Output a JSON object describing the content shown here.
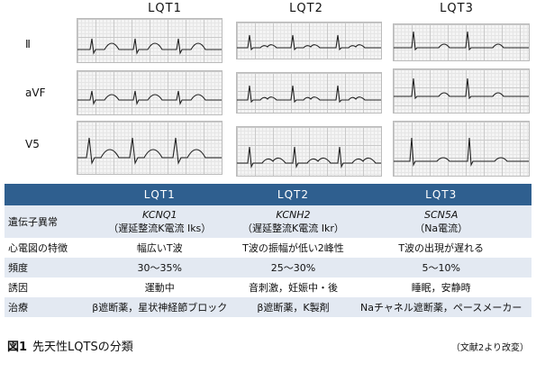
{
  "columns": [
    "LQT1",
    "LQT2",
    "LQT3"
  ],
  "leads": [
    "Ⅱ",
    "aVF",
    "V5"
  ],
  "table": {
    "header_blank": "",
    "rows": [
      {
        "label": "遺伝子異常",
        "cells": [
          {
            "line1": "KCNQ1",
            "line2": "（遅延整流K電流 Iks）"
          },
          {
            "line1": "KCNH2",
            "line2": "（遅延整流K電流 Ikr）"
          },
          {
            "line1": "SCN5A",
            "line2": "（Na電流）"
          }
        ]
      },
      {
        "label": "心電図の特徴",
        "cells": [
          "幅広いT波",
          "T波の振幅が低い2峰性",
          "T波の出現が遅れる"
        ]
      },
      {
        "label": "頻度",
        "cells": [
          "30〜35%",
          "25〜30%",
          "5〜10%"
        ]
      },
      {
        "label": "誘因",
        "cells": [
          "運動中",
          "音刺激，妊娠中・後",
          "睡眠，安静時"
        ]
      },
      {
        "label": "治療",
        "cells": [
          "β遮断薬，星状神経節ブロック",
          "β遮断薬，K製剤",
          "Naチャネル遮断薬，ペースメーカー"
        ]
      }
    ]
  },
  "caption": {
    "number": "図1",
    "text": "先天性LQTSの分類"
  },
  "source": "（文献2より改変）"
}
